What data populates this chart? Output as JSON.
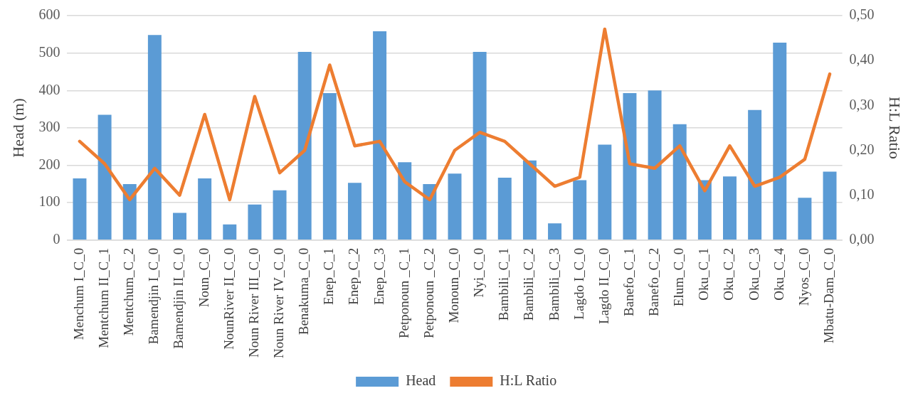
{
  "chart_data": {
    "type": "bar",
    "categories": [
      "Menchum I_C_0",
      "Mentchum II_C_1",
      "Mentchum_C_2",
      "Bamendjin I_C_0",
      "Bamendjin II_C_0",
      "Noun_C_0",
      "NounRiver II_C_0",
      "Noun River III_C_0",
      "Noun River IV_C_0",
      "Benakuma_C_0",
      "Enep_C_1",
      "Enep_C_2",
      "Enep_C_3",
      "Petponoun _C_1",
      "Petponoun _C_2",
      "Monoun_C_0",
      "Nyi_C_0",
      "Bambili_C_1",
      "Bambili_C_2",
      "Bambili_C_3",
      "Lagdo I_C_0",
      "Lagdo II_C_0",
      "Banefo_C_1",
      "Banefo_C_2",
      "Elum_C_0",
      "Oku_C_1",
      "Oku_C_2",
      "Oku_C_3",
      "Oku_C_4",
      "Nyos_C_0",
      "Mbatu-Dam_C_0"
    ],
    "series": [
      {
        "name": "Head",
        "color": "#5b9bd5",
        "values": [
          165,
          335,
          150,
          548,
          73,
          165,
          42,
          95,
          133,
          503,
          393,
          153,
          558,
          208,
          150,
          178,
          503,
          167,
          213,
          45,
          160,
          255,
          393,
          400,
          310,
          160,
          170,
          348,
          528,
          113,
          183
        ]
      },
      {
        "name": "H:L Ratio",
        "type": "line",
        "axis": "y2",
        "color": "#ed7d31",
        "values": [
          0.22,
          0.17,
          0.09,
          0.16,
          0.1,
          0.28,
          0.09,
          0.32,
          0.15,
          0.2,
          0.39,
          0.21,
          0.22,
          0.13,
          0.09,
          0.2,
          0.24,
          0.22,
          0.17,
          0.12,
          0.14,
          0.47,
          0.17,
          0.16,
          0.21,
          0.11,
          0.21,
          0.12,
          0.14,
          0.18,
          0.37
        ]
      }
    ],
    "ylabel": "Head (m)",
    "y2label": "H:L Ratio",
    "ylim": [
      0,
      600
    ],
    "yticks": [
      0,
      100,
      200,
      300,
      400,
      500,
      600
    ],
    "y2lim": [
      0,
      0.5
    ],
    "y2ticks": [
      {
        "value": 0,
        "label": "0,00"
      },
      {
        "value": 0.1,
        "label": "0,10"
      },
      {
        "value": 0.2,
        "label": "0,20"
      },
      {
        "value": 0.3,
        "label": "0,30"
      },
      {
        "value": 0.4,
        "label": "0,40"
      },
      {
        "value": 0.5,
        "label": "0,50"
      }
    ],
    "grid": "y",
    "legend": "bottom",
    "marker": "none",
    "line_style": "solid"
  }
}
